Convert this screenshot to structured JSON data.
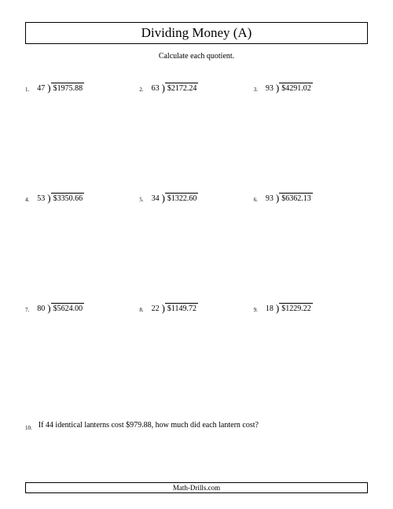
{
  "title": "Dividing Money (A)",
  "instruction": "Calculate each quotient.",
  "problems": [
    {
      "n": "1.",
      "divisor": "47",
      "dividend": "$1975.88"
    },
    {
      "n": "2.",
      "divisor": "63",
      "dividend": "$2172.24"
    },
    {
      "n": "3.",
      "divisor": "93",
      "dividend": "$4291.02"
    },
    {
      "n": "4.",
      "divisor": "53",
      "dividend": "$3350.66"
    },
    {
      "n": "5.",
      "divisor": "34",
      "dividend": "$1322.60"
    },
    {
      "n": "6.",
      "divisor": "93",
      "dividend": "$6362.13"
    },
    {
      "n": "7.",
      "divisor": "80",
      "dividend": "$5624.00"
    },
    {
      "n": "8.",
      "divisor": "22",
      "dividend": "$1149.72"
    },
    {
      "n": "9.",
      "divisor": "18",
      "dividend": "$1229.22"
    }
  ],
  "word_problem": {
    "n": "10.",
    "text": "If 44 identical lanterns cost $979.88, how much did each lantern cost?"
  },
  "footer": "Math-Drills.com",
  "style": {
    "page_bg": "#ffffff",
    "text_color": "#000000",
    "title_fontsize": 17,
    "body_fontsize": 10,
    "num_fontsize": 7,
    "footer_fontsize": 9
  }
}
